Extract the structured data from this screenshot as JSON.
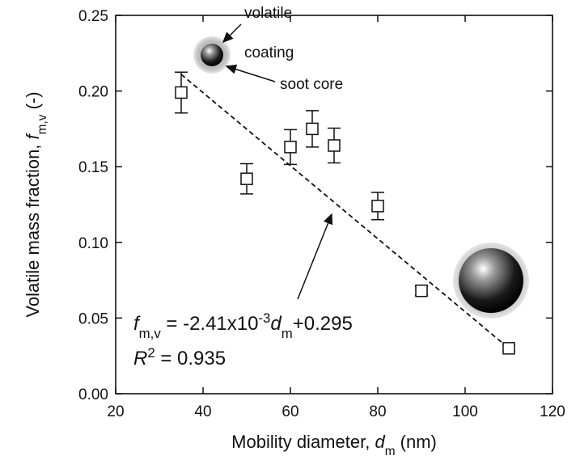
{
  "chart_data": {
    "type": "scatter",
    "x": [
      35,
      50,
      60,
      65,
      70,
      80,
      90,
      110
    ],
    "series": [
      {
        "color": "#111111",
        "marker": "open-square",
        "values": [
          0.199,
          0.142,
          0.163,
          0.175,
          0.164,
          0.124,
          0.068,
          0.03
        ],
        "errors": [
          0.0135,
          0.01,
          0.0115,
          0.012,
          0.0115,
          0.009,
          0.003,
          0.002
        ]
      }
    ],
    "fit": {
      "x": [
        35,
        110
      ],
      "values": [
        0.211,
        0.03
      ],
      "color": "#111111",
      "dashed": true
    },
    "xlim": [
      20,
      120
    ],
    "xticks": [
      20,
      40,
      60,
      80,
      100,
      120
    ],
    "ylim": [
      0,
      0.25
    ],
    "yticks": [
      {
        "value": 0,
        "label": "0.00"
      },
      0.05,
      {
        "value": 0.1,
        "label": "0.10"
      },
      0.15,
      {
        "value": 0.2,
        "label": "0.20"
      },
      0.25
    ],
    "xlabel": [
      {
        "text": "Mobility diameter, ",
        "style": "normal"
      },
      {
        "text": "d",
        "style": "italic"
      },
      {
        "text": "m",
        "style": "sub"
      },
      {
        "text": " (nm)",
        "style": "normal"
      }
    ],
    "ylabel": [
      {
        "text": "Volatile mass fraction, ",
        "style": "normal"
      },
      {
        "text": "f",
        "style": "italic"
      },
      {
        "text": "m,v",
        "style": "sub"
      },
      {
        "text": " (-)",
        "style": "normal"
      }
    ],
    "annotations": {
      "volatile": "volatile",
      "coating": "coating",
      "core": "soot core",
      "equation": [
        {
          "text": "f",
          "style": "italic"
        },
        {
          "text": "m,v",
          "style": "sub"
        },
        {
          "text": " = -2.41x10",
          "style": "normal"
        },
        {
          "text": "-3",
          "style": "sup"
        },
        {
          "text": "d",
          "style": "italic"
        },
        {
          "text": "m",
          "style": "sub"
        },
        {
          "text": "+0.295",
          "style": "normal"
        }
      ],
      "r2": [
        {
          "text": "R",
          "style": "italic"
        },
        {
          "text": "2",
          "style": "sup"
        },
        {
          "text": " = 0.935",
          "style": "normal"
        }
      ]
    }
  }
}
